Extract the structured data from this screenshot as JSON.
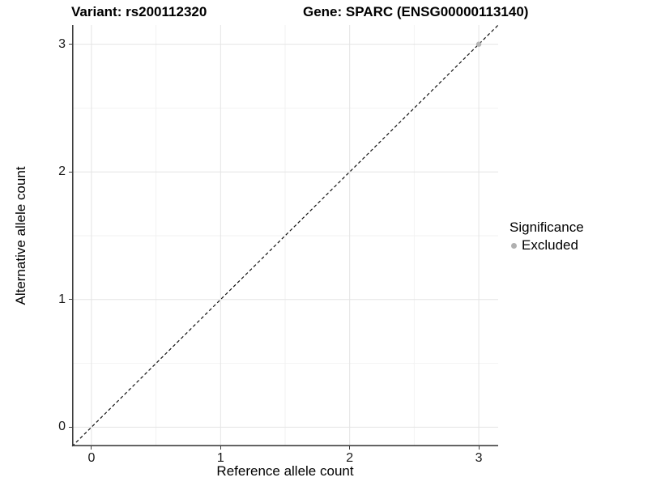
{
  "titles": {
    "variant": "Variant: rs200112320",
    "gene": "Gene: SPARC (ENSG00000113140)"
  },
  "chart_data": {
    "type": "scatter",
    "title_left": "Variant: rs200112320",
    "title_right": "Gene: SPARC (ENSG00000113140)",
    "xlabel": "Reference allele count",
    "ylabel": "Alternative allele count",
    "xlim": [
      -0.15,
      3.15
    ],
    "ylim": [
      -0.15,
      3.15
    ],
    "x_ticks": [
      0,
      1,
      2,
      3
    ],
    "y_ticks": [
      0,
      1,
      2,
      3
    ],
    "grid": true,
    "minor_grid_step": 0.5,
    "series": [
      {
        "name": "Excluded",
        "color": "#b5b5b5",
        "points": [
          [
            3,
            3
          ]
        ]
      }
    ],
    "reference_line": {
      "type": "identity",
      "slope": 1,
      "intercept": 0,
      "style": "dashed",
      "color": "#111111"
    },
    "legend": {
      "title": "Significance",
      "position": "right",
      "entries": [
        {
          "label": "Excluded",
          "color": "#b0b0b0"
        }
      ]
    },
    "colors": {
      "axis_line": "#404040",
      "grid_major": "#e4e4e4",
      "grid_minor": "#f2f2f2",
      "background": "#ffffff",
      "text": "#000000"
    }
  }
}
